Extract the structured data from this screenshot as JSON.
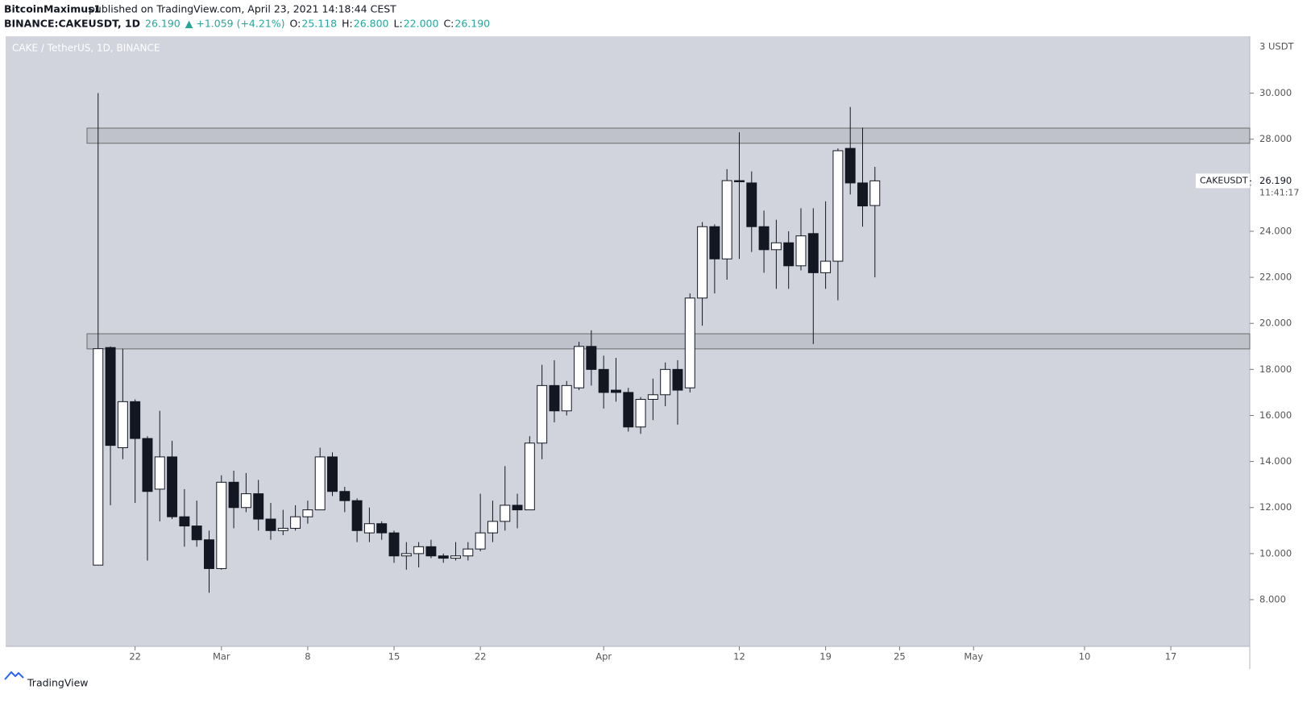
{
  "header": {
    "author": "BitcoinMaximus1",
    "published": "published on TradingView.com, April 23, 2021 14:18:44 CEST",
    "quote": [
      "BINANCE:CAKEUSDT, 1D",
      "26.190",
      "▲ +1.059 (+4.21%)",
      "O:",
      "25.118",
      "H:",
      "26.800",
      "L:",
      "22.000",
      "C:",
      "26.190"
    ]
  },
  "footer": "TradingView",
  "chart_data": {
    "type": "candlestick",
    "title": "CAKE / TetherUS, 1D, BINANCE",
    "y_axis_top_label": "3 USDT",
    "x": [
      0,
      1,
      2,
      3,
      4,
      5,
      6,
      7,
      8,
      9,
      10,
      11,
      12,
      13,
      14,
      15,
      16,
      17,
      18,
      19,
      20,
      21,
      22,
      23,
      24,
      25,
      26,
      27,
      28,
      29,
      30,
      31,
      32,
      33,
      34,
      35,
      36,
      37,
      38,
      39,
      40,
      41,
      42,
      43,
      44,
      45,
      46,
      47,
      48,
      49,
      50,
      51,
      52,
      53,
      54,
      55,
      56,
      57,
      58,
      59,
      60,
      61,
      62,
      63
    ],
    "open": [
      9.5,
      18.95,
      14.6,
      16.6,
      15.0,
      12.8,
      14.2,
      11.6,
      11.2,
      10.6,
      9.35,
      13.1,
      12.0,
      12.6,
      11.5,
      11.0,
      11.1,
      11.6,
      11.9,
      14.2,
      12.7,
      12.3,
      10.9,
      11.3,
      10.9,
      9.9,
      10.0,
      10.3,
      9.9,
      9.8,
      9.9,
      10.2,
      10.9,
      11.4,
      12.1,
      11.9,
      14.8,
      17.3,
      16.2,
      17.2,
      19.0,
      18.0,
      17.1,
      17.0,
      15.5,
      16.7,
      16.9,
      18.0,
      17.2,
      21.1,
      24.2,
      22.8,
      26.2,
      26.1,
      24.2,
      23.2,
      23.5,
      22.5,
      23.9,
      22.2,
      22.7,
      27.6,
      26.1,
      25.118
    ],
    "high": [
      30.0,
      19.0,
      18.9,
      16.7,
      15.1,
      16.2,
      14.9,
      12.8,
      12.3,
      11.0,
      13.4,
      13.6,
      13.5,
      13.2,
      12.2,
      11.9,
      12.1,
      12.3,
      14.6,
      14.4,
      12.9,
      12.4,
      12.0,
      11.4,
      11.0,
      10.5,
      10.5,
      10.6,
      10.0,
      10.5,
      10.5,
      12.6,
      12.3,
      13.8,
      12.6,
      15.1,
      18.2,
      18.4,
      17.5,
      19.2,
      19.7,
      18.6,
      18.5,
      17.2,
      16.8,
      17.6,
      18.3,
      18.4,
      21.3,
      24.4,
      24.3,
      26.7,
      28.3,
      26.6,
      24.9,
      24.5,
      24.0,
      25.0,
      25.0,
      25.3,
      27.6,
      29.4,
      28.5,
      26.8
    ],
    "low": [
      9.5,
      12.1,
      14.1,
      12.2,
      9.7,
      11.4,
      11.5,
      10.3,
      10.3,
      8.3,
      9.3,
      11.1,
      11.8,
      11.0,
      10.6,
      10.8,
      11.0,
      11.3,
      11.9,
      12.5,
      11.8,
      10.5,
      10.5,
      10.6,
      9.6,
      9.3,
      9.4,
      9.8,
      9.6,
      9.7,
      9.7,
      10.1,
      10.5,
      11.0,
      11.1,
      11.9,
      14.1,
      15.7,
      16.0,
      17.1,
      17.3,
      16.3,
      16.6,
      15.3,
      15.2,
      15.8,
      16.4,
      15.6,
      17.0,
      19.9,
      21.3,
      21.9,
      22.8,
      23.1,
      22.2,
      21.5,
      21.5,
      22.3,
      19.1,
      21.5,
      21.0,
      25.6,
      24.2,
      22.0
    ],
    "close": [
      18.9,
      14.7,
      16.6,
      15.0,
      12.7,
      14.2,
      11.6,
      11.2,
      10.6,
      9.35,
      13.1,
      12.0,
      12.6,
      11.5,
      11.0,
      11.1,
      11.6,
      11.9,
      14.2,
      12.7,
      12.3,
      11.0,
      11.3,
      10.9,
      9.9,
      10.0,
      10.3,
      9.9,
      9.8,
      9.9,
      10.2,
      10.9,
      11.4,
      12.1,
      11.9,
      14.8,
      17.3,
      16.2,
      17.3,
      19.0,
      18.0,
      17.0,
      17.0,
      15.5,
      16.7,
      16.9,
      18.0,
      17.1,
      21.1,
      24.2,
      22.8,
      26.2,
      26.15,
      24.2,
      23.2,
      23.5,
      22.5,
      23.8,
      22.2,
      22.7,
      27.5,
      26.1,
      25.1,
      26.19
    ],
    "up_color": "#ffffff",
    "down_color": "#131722",
    "wick_color": "#131722",
    "background": "#d1d4dc",
    "zones": [
      {
        "from": 27.82,
        "to": 28.48
      },
      {
        "from": 18.89,
        "to": 19.55
      }
    ],
    "zone_start": -0.9,
    "xlim": [
      -7.5,
      93.4
    ],
    "xticks": [
      {
        "value": 3,
        "label": "22"
      },
      {
        "value": 10,
        "label": "Mar"
      },
      {
        "value": 17,
        "label": "8"
      },
      {
        "value": 24,
        "label": "15"
      },
      {
        "value": 31,
        "label": "22"
      },
      {
        "value": 41,
        "label": "Apr"
      },
      {
        "value": 52,
        "label": "12"
      },
      {
        "value": 59,
        "label": "19"
      },
      {
        "value": 65,
        "label": "25"
      },
      {
        "value": 71,
        "label": "May"
      },
      {
        "value": 80,
        "label": "10"
      },
      {
        "value": 87,
        "label": "17"
      }
    ],
    "ylim": [
      5.97,
      32.47
    ],
    "yticks": [
      {
        "value": 8,
        "label": "8.000"
      },
      {
        "value": 10,
        "label": "10.000"
      },
      {
        "value": 12,
        "label": "12.000"
      },
      {
        "value": 14,
        "label": "14.000"
      },
      {
        "value": 16,
        "label": "16.000"
      },
      {
        "value": 18,
        "label": "18.000"
      },
      {
        "value": 20,
        "label": "20.000"
      },
      {
        "value": 22,
        "label": "22.000"
      },
      {
        "value": 24,
        "label": "24.000"
      },
      {
        "value": 26,
        "label": "26.000"
      },
      {
        "value": 28,
        "label": "28.000"
      },
      {
        "value": 30,
        "label": "30.000"
      }
    ],
    "last_price": {
      "symbol": "CAKEUSDT",
      "value": 26.19,
      "label": "26.190",
      "countdown": "11:41:17"
    }
  }
}
